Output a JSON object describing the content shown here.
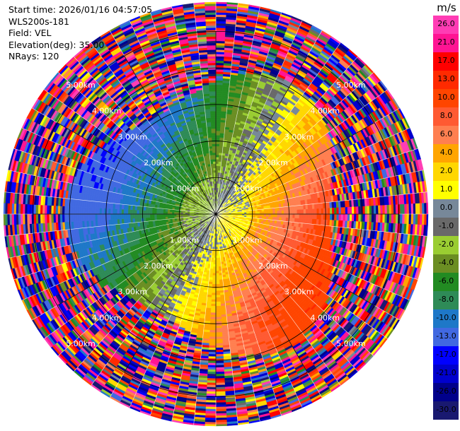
{
  "header": {
    "start_time": "Start time: 2026/01/16 04:57:05",
    "instrument": "WLS200s-181",
    "field": "Field: VEL",
    "elevation": "Elevation(deg): 35.00",
    "nrays": "NRays: 120"
  },
  "colorbar": {
    "unit": "m/s",
    "ticks": [
      "26.0",
      "21.0",
      "17.0",
      "13.0",
      "10.0",
      "8.0",
      "6.0",
      "4.0",
      "2.0",
      "1.0",
      "0.0",
      "-1.0",
      "-2.0",
      "-4.0",
      "-6.0",
      "-8.0",
      "-10.0",
      "-13.0",
      "-17.0",
      "-21.0",
      "-26.0",
      "-30.0"
    ],
    "bins": [
      {
        "lo": 26,
        "hi": 30,
        "color": "#ff3cb4"
      },
      {
        "lo": 21,
        "hi": 26,
        "color": "#ff1493"
      },
      {
        "lo": 17,
        "hi": 21,
        "color": "#ff0000"
      },
      {
        "lo": 13,
        "hi": 17,
        "color": "#ff2a00"
      },
      {
        "lo": 10,
        "hi": 13,
        "color": "#ff4500"
      },
      {
        "lo": 8,
        "hi": 10,
        "color": "#ff5a32"
      },
      {
        "lo": 6,
        "hi": 8,
        "color": "#ff7f50"
      },
      {
        "lo": 4,
        "hi": 6,
        "color": "#ffa500"
      },
      {
        "lo": 2,
        "hi": 4,
        "color": "#ffd700"
      },
      {
        "lo": 1,
        "hi": 2,
        "color": "#ffff00"
      },
      {
        "lo": 0,
        "hi": 1,
        "color": "#778899"
      },
      {
        "lo": -1,
        "hi": 0,
        "color": "#696969"
      },
      {
        "lo": -2,
        "hi": -1,
        "color": "#9acd32"
      },
      {
        "lo": -4,
        "hi": -2,
        "color": "#6b8e23"
      },
      {
        "lo": -6,
        "hi": -4,
        "color": "#228b22"
      },
      {
        "lo": -8,
        "hi": -6,
        "color": "#2e8b57"
      },
      {
        "lo": -10,
        "hi": -8,
        "color": "#1e78c8"
      },
      {
        "lo": -13,
        "hi": -10,
        "color": "#4169e1"
      },
      {
        "lo": -17,
        "hi": -13,
        "color": "#0000ff"
      },
      {
        "lo": -21,
        "hi": -17,
        "color": "#0000cd"
      },
      {
        "lo": -26,
        "hi": -21,
        "color": "#00008b"
      },
      {
        "lo": -30,
        "hi": -26,
        "color": "#191970"
      }
    ]
  },
  "ppi": {
    "range_km": [
      0,
      5.8
    ],
    "ring_labels": [
      "1.00km",
      "2.00km",
      "3.00km",
      "4.00km",
      "5.00km"
    ],
    "rings_km": [
      1,
      2,
      3,
      4,
      5
    ],
    "nrays": 120
  }
}
